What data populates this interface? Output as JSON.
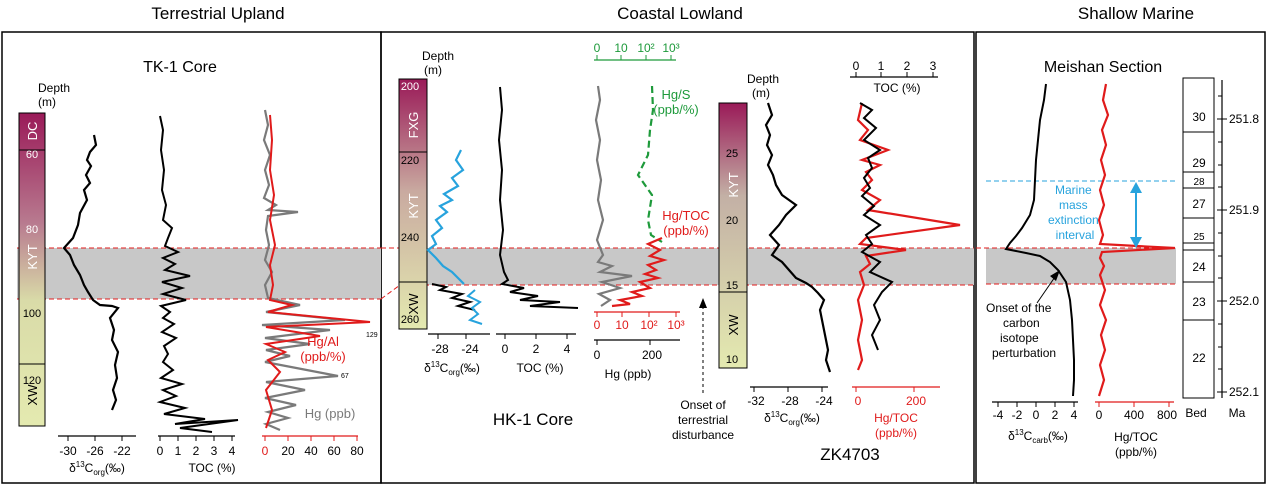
{
  "headers": {
    "left": "Terrestrial Upland",
    "mid": "Coastal Lowland",
    "right": "Shallow Marine"
  },
  "colors": {
    "red": "#e01b1b",
    "gray": "#7a7a7a",
    "blue": "#27a3dd",
    "green": "#1e9a3b",
    "shade": "#c8c8c8",
    "black": "#000000"
  },
  "chart_data": [
    {
      "type": "line",
      "title": "TK-1 Core",
      "depth_label": "Depth",
      "depth_unit": "(m)",
      "depth_ticks": [
        "60",
        "80",
        "100",
        "120"
      ],
      "units": [
        "DC",
        "KYT",
        "XW"
      ],
      "panels": [
        {
          "xlabel_pre": "δ",
          "xlabel_sup": "13",
          "xlabel_mid": "C",
          "xlabel_sub": "org",
          "xlabel_post": "(‰)",
          "ticks": [
            "-30",
            "-26",
            "-22"
          ],
          "range": [
            -32,
            -20
          ]
        },
        {
          "xlabel": "TOC (%)",
          "ticks": [
            "0",
            "1",
            "2",
            "3",
            "4"
          ],
          "range": [
            0,
            4.2
          ]
        },
        {
          "ticks": [
            "0",
            "20",
            "40",
            "60",
            "80"
          ],
          "range": [
            0,
            85
          ],
          "series": [
            {
              "name": "Hg/Al",
              "unit": "(ppb/%)"
            },
            {
              "name": "Hg (ppb)"
            }
          ],
          "peak_labels": [
            "129",
            "67"
          ]
        }
      ]
    },
    {
      "type": "line",
      "title": "HK-1 Core",
      "depth_label": "Depth",
      "depth_unit": "(m)",
      "depth_ticks": [
        "200",
        "220",
        "240",
        "260"
      ],
      "units": [
        "FXG",
        "KYT",
        "XW"
      ],
      "panels": [
        {
          "xlabel_pre": "δ",
          "xlabel_sup": "13",
          "xlabel_mid": "C",
          "xlabel_sub": "org",
          "xlabel_post": "(‰)",
          "ticks": [
            "-28",
            "-24"
          ],
          "range": [
            -31,
            -22
          ]
        },
        {
          "xlabel": "TOC (%)",
          "ticks": [
            "0",
            "2",
            "4"
          ],
          "range": [
            0,
            5
          ]
        },
        {
          "xlabel": "Hg (ppb)",
          "ticks": [
            "0",
            "200"
          ],
          "top_ticks": [
            "0",
            "10",
            "10²",
            "10³"
          ],
          "bottom_ticks": [
            "0",
            "10",
            "10²",
            "10³"
          ],
          "series": [
            {
              "name": "Hg/S",
              "unit": "(ppb/%)"
            },
            {
              "name": "Hg/TOC",
              "unit": "(ppb/%)"
            }
          ]
        }
      ],
      "annotation": "Onset of terrestrial disturbance"
    },
    {
      "type": "line",
      "title": "ZK4703",
      "depth_label": "Depth",
      "depth_unit": "(m)",
      "depth_ticks": [
        "25",
        "20",
        "15",
        "10"
      ],
      "units": [
        "KYT",
        "XW"
      ],
      "panels": [
        {
          "xlabel_pre": "δ",
          "xlabel_sup": "13",
          "xlabel_mid": "C",
          "xlabel_sub": "org",
          "xlabel_post": "(‰)",
          "ticks": [
            "-32",
            "-28",
            "-24"
          ],
          "range": [
            -33,
            -23
          ]
        },
        {
          "xlabel": "TOC (%)",
          "top": true,
          "ticks": [
            "0",
            "1",
            "2",
            "3"
          ],
          "range": [
            0,
            3.2
          ]
        },
        {
          "xlabel": "Hg/TOC",
          "unit": "(ppb/%)",
          "ticks": [
            "0",
            "200"
          ],
          "range": [
            0,
            300
          ]
        }
      ]
    },
    {
      "type": "line",
      "title": "Meishan Section",
      "panels": [
        {
          "xlabel_pre": "δ",
          "xlabel_sup": "13",
          "xlabel_mid": "C",
          "xlabel_sub": "carb",
          "xlabel_post": "(‰)",
          "ticks": [
            "-4",
            "-2",
            "0",
            "2",
            "4"
          ],
          "range": [
            -5,
            5
          ]
        },
        {
          "xlabel": "Hg/TOC",
          "unit": "(ppb/%)",
          "ticks": [
            "0",
            "400",
            "800"
          ],
          "range": [
            0,
            950
          ]
        }
      ],
      "beds": [
        "30",
        "29",
        "28",
        "27",
        "25",
        "24",
        "23",
        "22"
      ],
      "bed_label": "Bed",
      "age_label": "Ma",
      "ages": [
        "251.8",
        "251.9",
        "252.0",
        "252.1"
      ],
      "annotation_extinction": [
        "Marine",
        "mass",
        "extinction",
        "interval"
      ],
      "annotation_onset": [
        "Onset of the",
        "carbon",
        "isotope",
        "perturbation"
      ]
    }
  ]
}
